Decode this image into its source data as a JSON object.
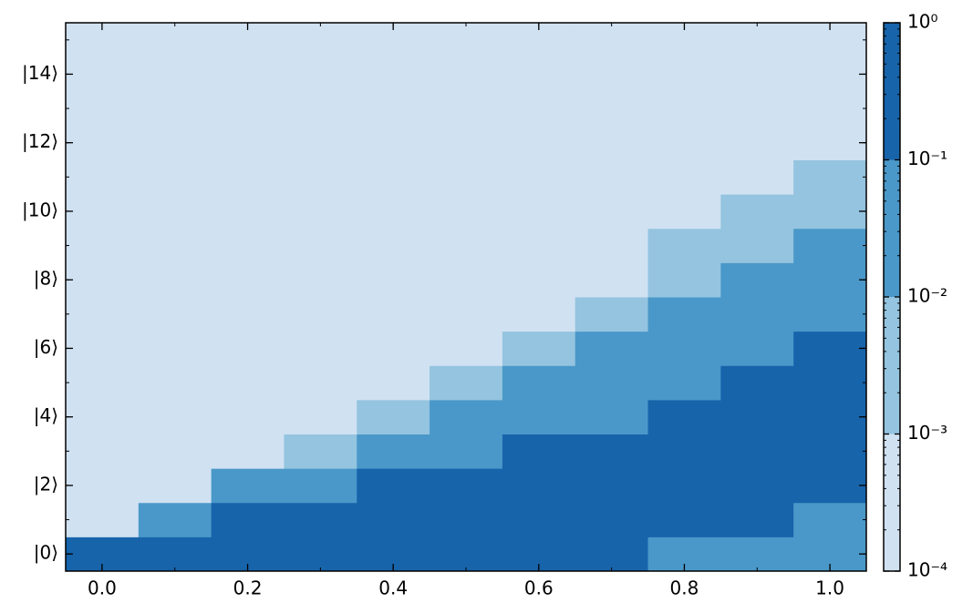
{
  "chart_data": {
    "type": "heatmap",
    "x": [
      0.0,
      0.1,
      0.2,
      0.3,
      0.4,
      0.5,
      0.6,
      0.7,
      0.8,
      0.9,
      1.0
    ],
    "y": [
      0,
      1,
      2,
      3,
      4,
      5,
      6,
      7,
      8,
      9,
      10,
      11,
      12,
      13,
      14,
      15
    ],
    "z": [
      [
        0.3,
        0.3,
        0.3,
        0.3,
        0.3,
        0.3,
        0.3,
        0.3,
        0.03,
        0.03,
        0.03
      ],
      [
        0.0003,
        0.03,
        0.3,
        0.3,
        0.3,
        0.3,
        0.3,
        0.3,
        0.3,
        0.3,
        0.03
      ],
      [
        0.0003,
        0.0003,
        0.03,
        0.03,
        0.3,
        0.3,
        0.3,
        0.3,
        0.3,
        0.3,
        0.3
      ],
      [
        0.0003,
        0.0003,
        0.0003,
        0.003,
        0.03,
        0.03,
        0.3,
        0.3,
        0.3,
        0.3,
        0.3
      ],
      [
        0.0003,
        0.0003,
        0.0003,
        0.0003,
        0.003,
        0.03,
        0.03,
        0.03,
        0.3,
        0.3,
        0.3
      ],
      [
        0.0003,
        0.0003,
        0.0003,
        0.0003,
        0.0003,
        0.003,
        0.03,
        0.03,
        0.03,
        0.3,
        0.3
      ],
      [
        0.0003,
        0.0003,
        0.0003,
        0.0003,
        0.0003,
        0.0003,
        0.003,
        0.03,
        0.03,
        0.03,
        0.3
      ],
      [
        0.0003,
        0.0003,
        0.0003,
        0.0003,
        0.0003,
        0.0003,
        0.0003,
        0.003,
        0.03,
        0.03,
        0.03
      ],
      [
        0.0003,
        0.0003,
        0.0003,
        0.0003,
        0.0003,
        0.0003,
        0.0003,
        0.0003,
        0.003,
        0.03,
        0.03
      ],
      [
        0.0003,
        0.0003,
        0.0003,
        0.0003,
        0.0003,
        0.0003,
        0.0003,
        0.0003,
        0.003,
        0.003,
        0.03
      ],
      [
        0.0003,
        0.0003,
        0.0003,
        0.0003,
        0.0003,
        0.0003,
        0.0003,
        0.0003,
        0.0003,
        0.003,
        0.003
      ],
      [
        0.0003,
        0.0003,
        0.0003,
        0.0003,
        0.0003,
        0.0003,
        0.0003,
        0.0003,
        0.0003,
        0.0003,
        0.003
      ],
      [
        0.0003,
        0.0003,
        0.0003,
        0.0003,
        0.0003,
        0.0003,
        0.0003,
        0.0003,
        0.0003,
        0.0003,
        0.0003
      ],
      [
        0.0003,
        0.0003,
        0.0003,
        0.0003,
        0.0003,
        0.0003,
        0.0003,
        0.0003,
        0.0003,
        0.0003,
        0.0003
      ],
      [
        0.0003,
        0.0003,
        0.0003,
        0.0003,
        0.0003,
        0.0003,
        0.0003,
        0.0003,
        0.0003,
        0.0003,
        0.0003
      ],
      [
        0.0003,
        0.0003,
        0.0003,
        0.0003,
        0.0003,
        0.0003,
        0.0003,
        0.0003,
        0.0003,
        0.0003,
        0.0003
      ]
    ],
    "xlim": [
      -0.05,
      1.05
    ],
    "ylim": [
      -0.5,
      15.5
    ],
    "xticks": [
      {
        "value": 0,
        "label": "0.0"
      },
      {
        "value": 0.2,
        "label": "0.2"
      },
      {
        "value": 0.4,
        "label": "0.4"
      },
      {
        "value": 0.6,
        "label": "0.6"
      },
      {
        "value": 0.8,
        "label": "0.8"
      },
      {
        "value": 1,
        "label": "1.0"
      }
    ],
    "yticks": [
      {
        "value": 0,
        "label": "|0⟩"
      },
      {
        "value": 2,
        "label": "|2⟩"
      },
      {
        "value": 4,
        "label": "|4⟩"
      },
      {
        "value": 6,
        "label": "|6⟩"
      },
      {
        "value": 8,
        "label": "|8⟩"
      },
      {
        "value": 10,
        "label": "|10⟩"
      },
      {
        "value": 12,
        "label": "|12⟩"
      },
      {
        "value": 14,
        "label": "|14⟩"
      }
    ],
    "colorbar": {
      "log_scale": true,
      "boundaries": [
        0.0001,
        0.001,
        0.01,
        0.1,
        1
      ],
      "colors": [
        "#d0e1f2",
        "#94c4df",
        "#4a98c9",
        "#1764ab"
      ],
      "ticks": [
        {
          "value": 0.0001,
          "label": "10⁻⁴"
        },
        {
          "value": 0.001,
          "label": "10⁻³"
        },
        {
          "value": 0.01,
          "label": "10⁻²"
        },
        {
          "value": 0.1,
          "label": "10⁻¹"
        },
        {
          "value": 1,
          "label": "10⁰"
        }
      ]
    }
  }
}
